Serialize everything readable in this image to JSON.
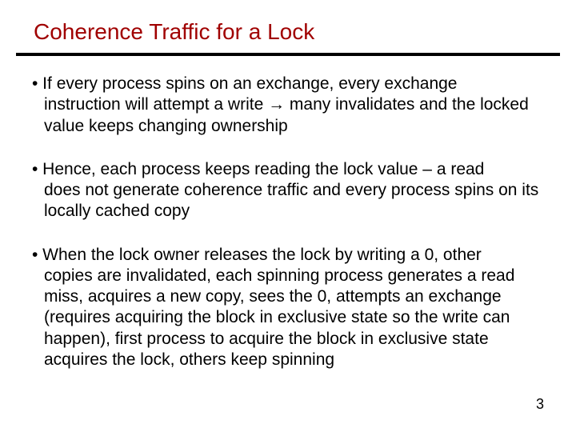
{
  "title_color": "#a00000",
  "rule_color": "#000000",
  "text_color": "#000000",
  "background_color": "#ffffff",
  "title": "Coherence Traffic for a Lock",
  "bullets": [
    {
      "first": "• If every process spins on an exchange, every exchange",
      "cont": "instruction will attempt a write → many invalidates and the locked value keeps changing ownership"
    },
    {
      "first": "• Hence, each process keeps reading the lock value – a read",
      "cont": "does not generate coherence traffic and every process spins on its locally cached copy"
    },
    {
      "first": "• When the lock owner releases the lock by writing a 0, other",
      "cont": "copies are invalidated, each spinning process generates a read miss, acquires a new copy, sees the 0, attempts an exchange (requires acquiring the block in exclusive state so the write can happen), first process to acquire the block in exclusive state acquires the lock, others keep spinning"
    }
  ],
  "page_number": "3"
}
